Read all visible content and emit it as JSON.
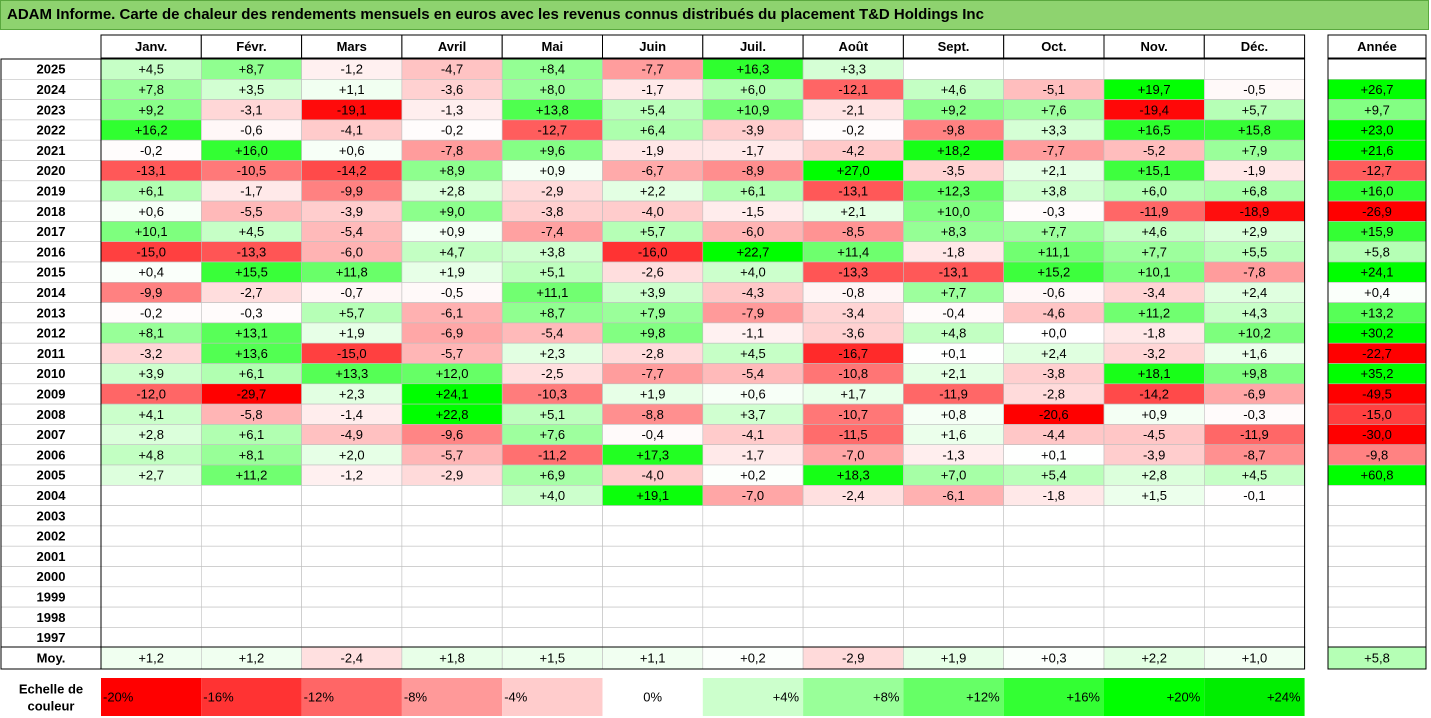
{
  "title": "ADAM Informe. Carte de chaleur des rendements mensuels en euros avec les revenus connus distribués du placement T&D Holdings Inc",
  "chart_data": {
    "type": "heatmap",
    "columns": [
      "Janv.",
      "Févr.",
      "Mars",
      "Avril",
      "Mai",
      "Juin",
      "Juil.",
      "Août",
      "Sept.",
      "Oct.",
      "Nov.",
      "Déc."
    ],
    "year_column_label": "Année",
    "rows": [
      {
        "year": "2025",
        "months": [
          "+4,5",
          "+8,7",
          "-1,2",
          "-4,7",
          "+8,4",
          "-7,7",
          "+16,3",
          "+3,3",
          "",
          "",
          "",
          ""
        ],
        "annual": ""
      },
      {
        "year": "2024",
        "months": [
          "+7,8",
          "+3,5",
          "+1,1",
          "-3,6",
          "+8,0",
          "-1,7",
          "+6,0",
          "-12,1",
          "+4,6",
          "-5,1",
          "+19,7",
          "-0,5"
        ],
        "annual": "+26,7"
      },
      {
        "year": "2023",
        "months": [
          "+9,2",
          "-3,1",
          "-19,1",
          "-1,3",
          "+13,8",
          "+5,4",
          "+10,9",
          "-2,1",
          "+9,2",
          "+7,6",
          "-19,4",
          "+5,7"
        ],
        "annual": "+9,7"
      },
      {
        "year": "2022",
        "months": [
          "+16,2",
          "-0,6",
          "-4,1",
          "-0,2",
          "-12,7",
          "+6,4",
          "-3,9",
          "-0,2",
          "-9,8",
          "+3,3",
          "+16,5",
          "+15,8"
        ],
        "annual": "+23,0"
      },
      {
        "year": "2021",
        "months": [
          "-0,2",
          "+16,0",
          "+0,6",
          "-7,8",
          "+9,6",
          "-1,9",
          "-1,7",
          "-4,2",
          "+18,2",
          "-7,7",
          "-5,2",
          "+7,9"
        ],
        "annual": "+21,6"
      },
      {
        "year": "2020",
        "months": [
          "-13,1",
          "-10,5",
          "-14,2",
          "+8,9",
          "+0,9",
          "-6,7",
          "-8,9",
          "+27,0",
          "-3,5",
          "+2,1",
          "+15,1",
          "-1,9"
        ],
        "annual": "-12,7"
      },
      {
        "year": "2019",
        "months": [
          "+6,1",
          "-1,7",
          "-9,9",
          "+2,8",
          "-2,9",
          "+2,2",
          "+6,1",
          "-13,1",
          "+12,3",
          "+3,8",
          "+6,0",
          "+6,8"
        ],
        "annual": "+16,0"
      },
      {
        "year": "2018",
        "months": [
          "+0,6",
          "-5,5",
          "-3,9",
          "+9,0",
          "-3,8",
          "-4,0",
          "-1,5",
          "+2,1",
          "+10,0",
          "-0,3",
          "-11,9",
          "-18,9"
        ],
        "annual": "-26,9"
      },
      {
        "year": "2017",
        "months": [
          "+10,1",
          "+4,5",
          "-5,4",
          "+0,9",
          "-7,4",
          "+5,7",
          "-6,0",
          "-8,5",
          "+8,3",
          "+7,7",
          "+4,6",
          "+2,9"
        ],
        "annual": "+15,9"
      },
      {
        "year": "2016",
        "months": [
          "-15,0",
          "-13,3",
          "-6,0",
          "+4,7",
          "+3,8",
          "-16,0",
          "+22,7",
          "+11,4",
          "-1,8",
          "+11,1",
          "+7,7",
          "+5,5"
        ],
        "annual": "+5,8"
      },
      {
        "year": "2015",
        "months": [
          "+0,4",
          "+15,5",
          "+11,8",
          "+1,9",
          "+5,1",
          "-2,6",
          "+4,0",
          "-13,3",
          "-13,1",
          "+15,2",
          "+10,1",
          "-7,8"
        ],
        "annual": "+24,1"
      },
      {
        "year": "2014",
        "months": [
          "-9,9",
          "-2,7",
          "-0,7",
          "-0,5",
          "+11,1",
          "+3,9",
          "-4,3",
          "-0,8",
          "+7,7",
          "-0,6",
          "-3,4",
          "+2,4"
        ],
        "annual": "+0,4"
      },
      {
        "year": "2013",
        "months": [
          "-0,2",
          "-0,3",
          "+5,7",
          "-6,1",
          "+8,7",
          "+7,9",
          "-7,9",
          "-3,4",
          "-0,4",
          "-4,6",
          "+11,2",
          "+4,3"
        ],
        "annual": "+13,2"
      },
      {
        "year": "2012",
        "months": [
          "+8,1",
          "+13,1",
          "+1,9",
          "-6,9",
          "-5,4",
          "+9,8",
          "-1,1",
          "-3,6",
          "+4,8",
          "+0,0",
          "-1,8",
          "+10,2"
        ],
        "annual": "+30,2"
      },
      {
        "year": "2011",
        "months": [
          "-3,2",
          "+13,6",
          "-15,0",
          "-5,7",
          "+2,3",
          "-2,8",
          "+4,5",
          "-16,7",
          "+0,1",
          "+2,4",
          "-3,2",
          "+1,6"
        ],
        "annual": "-22,7"
      },
      {
        "year": "2010",
        "months": [
          "+3,9",
          "+6,1",
          "+13,3",
          "+12,0",
          "-2,5",
          "-7,7",
          "-5,4",
          "-10,8",
          "+2,1",
          "-3,8",
          "+18,1",
          "+9,8"
        ],
        "annual": "+35,2"
      },
      {
        "year": "2009",
        "months": [
          "-12,0",
          "-29,7",
          "+2,3",
          "+24,1",
          "-10,3",
          "+1,9",
          "+0,6",
          "+1,7",
          "-11,9",
          "-2,8",
          "-14,2",
          "-6,9"
        ],
        "annual": "-49,5"
      },
      {
        "year": "2008",
        "months": [
          "+4,1",
          "-5,8",
          "-1,4",
          "+22,8",
          "+5,1",
          "-8,8",
          "+3,7",
          "-10,7",
          "+0,8",
          "-20,6",
          "+0,9",
          "-0,3"
        ],
        "annual": "-15,0"
      },
      {
        "year": "2007",
        "months": [
          "+2,8",
          "+6,1",
          "-4,9",
          "-9,6",
          "+7,6",
          "-0,4",
          "-4,1",
          "-11,5",
          "+1,6",
          "-4,4",
          "-4,5",
          "-11,9"
        ],
        "annual": "-30,0"
      },
      {
        "year": "2006",
        "months": [
          "+4,8",
          "+8,1",
          "+2,0",
          "-5,7",
          "-11,2",
          "+17,3",
          "-1,7",
          "-7,0",
          "-1,3",
          "+0,1",
          "-3,9",
          "-8,7"
        ],
        "annual": "-9,8"
      },
      {
        "year": "2005",
        "months": [
          "+2,7",
          "+11,2",
          "-1,2",
          "-2,9",
          "+6,9",
          "-4,0",
          "+0,2",
          "+18,3",
          "+7,0",
          "+5,4",
          "+2,8",
          "+4,5"
        ],
        "annual": "+60,8"
      },
      {
        "year": "2004",
        "months": [
          "",
          "",
          "",
          "",
          "+4,0",
          "+19,1",
          "-7,0",
          "-2,4",
          "-6,1",
          "-1,8",
          "+1,5",
          "-0,1"
        ],
        "annual": ""
      },
      {
        "year": "2003",
        "months": [
          "",
          "",
          "",
          "",
          "",
          "",
          "",
          "",
          "",
          "",
          "",
          ""
        ],
        "annual": ""
      },
      {
        "year": "2002",
        "months": [
          "",
          "",
          "",
          "",
          "",
          "",
          "",
          "",
          "",
          "",
          "",
          ""
        ],
        "annual": ""
      },
      {
        "year": "2001",
        "months": [
          "",
          "",
          "",
          "",
          "",
          "",
          "",
          "",
          "",
          "",
          "",
          ""
        ],
        "annual": ""
      },
      {
        "year": "2000",
        "months": [
          "",
          "",
          "",
          "",
          "",
          "",
          "",
          "",
          "",
          "",
          "",
          ""
        ],
        "annual": ""
      },
      {
        "year": "1999",
        "months": [
          "",
          "",
          "",
          "",
          "",
          "",
          "",
          "",
          "",
          "",
          "",
          ""
        ],
        "annual": ""
      },
      {
        "year": "1998",
        "months": [
          "",
          "",
          "",
          "",
          "",
          "",
          "",
          "",
          "",
          "",
          "",
          ""
        ],
        "annual": ""
      },
      {
        "year": "1997",
        "months": [
          "",
          "",
          "",
          "",
          "",
          "",
          "",
          "",
          "",
          "",
          "",
          ""
        ],
        "annual": ""
      }
    ],
    "average_row": {
      "label": "Moy.",
      "months": [
        "+1,2",
        "+1,2",
        "-2,4",
        "+1,8",
        "+1,5",
        "+1,1",
        "+0,2",
        "-2,9",
        "+1,9",
        "+0,3",
        "+2,2",
        "+1,0"
      ],
      "annual": "+5,8"
    },
    "scale": {
      "label": "Echelle de couleur",
      "steps": [
        {
          "label": "-20%",
          "value": -20,
          "color": "#ff0000"
        },
        {
          "label": "-16%",
          "value": -16,
          "color": "#ff3333"
        },
        {
          "label": "-12%",
          "value": -12,
          "color": "#ff6666"
        },
        {
          "label": "-8%",
          "value": -8,
          "color": "#ff9999"
        },
        {
          "label": "-4%",
          "value": -4,
          "color": "#ffcccc"
        },
        {
          "label": "0%",
          "value": 0,
          "color": "#ffffff"
        },
        {
          "label": "+4%",
          "value": 4,
          "color": "#ccffcc"
        },
        {
          "label": "+8%",
          "value": 8,
          "color": "#99ff99"
        },
        {
          "label": "+12%",
          "value": 12,
          "color": "#66ff66"
        },
        {
          "label": "+16%",
          "value": 16,
          "color": "#33ff33"
        },
        {
          "label": "+20%",
          "value": 20,
          "color": "#00ff00"
        },
        {
          "label": "+24%",
          "value": 24,
          "color": "#00ee00"
        }
      ]
    }
  }
}
